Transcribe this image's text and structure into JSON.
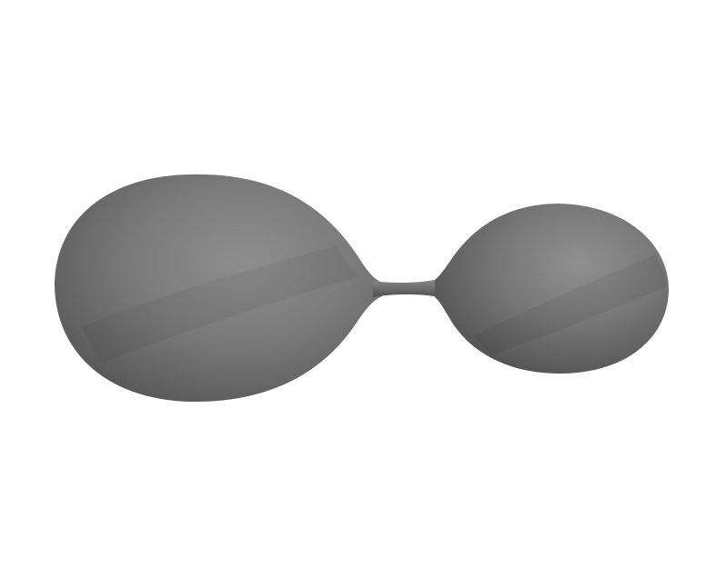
{
  "scene": {
    "background_color": "#ffffff",
    "object_color": "#7a7a7a",
    "shadow_color": "#4a4a4a",
    "highlight_color": "#9a9a9a",
    "shape": "dumbbell-shaped 3d surface with two lobes joined by a thin neck"
  }
}
